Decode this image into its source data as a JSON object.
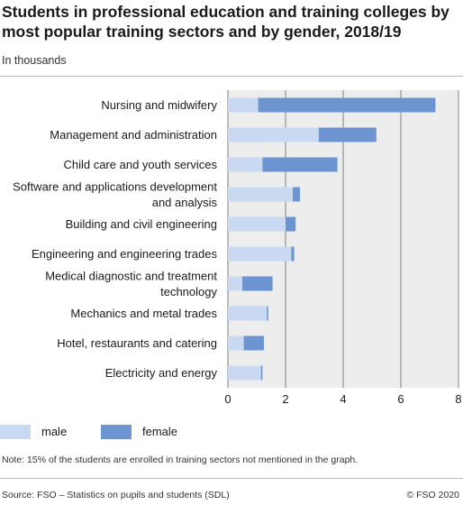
{
  "title": "Students in professional education and training colleges by most popular training sectors and by gender, 2018/19",
  "subtitle": "In thousands",
  "note": "Note: 15% of the students are enrolled in training sectors not mentioned in the graph.",
  "source": "Source: FSO – Statistics on pupils and students (SDL)",
  "copyright": "© FSO 2020",
  "colors": {
    "male": "#c9d9f1",
    "female": "#6b94d0",
    "plot_bg": "#ededed",
    "grid": "#808080"
  },
  "chart_data": {
    "type": "bar",
    "orientation": "horizontal",
    "stacked": true,
    "categories": [
      [
        "Nursing and midwifery"
      ],
      [
        "Management and administration"
      ],
      [
        "Child care and youth services"
      ],
      [
        "Software and applications development",
        "and analysis"
      ],
      [
        "Building and civil engineering"
      ],
      [
        "Engineering and engineering trades"
      ],
      [
        "Medical diagnostic and treatment",
        "technology"
      ],
      [
        "Mechanics and metal trades"
      ],
      [
        "Hotel, restaurants and catering"
      ],
      [
        "Electricity and energy"
      ]
    ],
    "series": [
      {
        "name": "male",
        "values": [
          1.05,
          3.15,
          1.2,
          2.25,
          2.0,
          2.2,
          0.5,
          1.35,
          0.55,
          1.15
        ]
      },
      {
        "name": "female",
        "values": [
          6.15,
          2.0,
          2.6,
          0.25,
          0.35,
          0.1,
          1.05,
          0.05,
          0.7,
          0.05
        ]
      }
    ],
    "x_ticks": [
      "0",
      "2",
      "4",
      "6",
      "8"
    ],
    "xlim": [
      0,
      8
    ],
    "grid": true,
    "legend": "bottom-left"
  }
}
